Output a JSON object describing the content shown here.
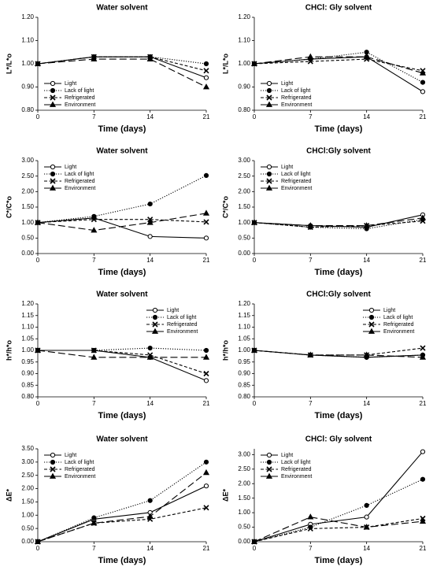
{
  "chart_data": [
    {
      "type": "line",
      "title": "Water solvent",
      "x_label": "Time (days)",
      "y_label": "L*/L*o",
      "legend": "lower left",
      "x": [
        0,
        7,
        14,
        21
      ],
      "xlim": [
        0,
        21
      ],
      "xticks": [
        0,
        7,
        14,
        21
      ],
      "ylim": [
        0.8,
        1.2
      ],
      "yticks": [
        {
          "value": 0.8,
          "label": "0.80"
        },
        {
          "value": 0.9,
          "label": "0.90"
        },
        {
          "value": 1.0,
          "label": "1.00"
        },
        {
          "value": 1.1,
          "label": "1.10"
        },
        {
          "value": 1.2,
          "label": "1.20"
        }
      ],
      "series": [
        {
          "name": "Light",
          "color": "#000000",
          "dash": "solid",
          "marker": "circle-open",
          "values": [
            1.0,
            1.03,
            1.03,
            0.94
          ]
        },
        {
          "name": "Lack of light",
          "color": "#000000",
          "dash": "dotted",
          "marker": "circle",
          "values": [
            1.0,
            1.03,
            1.03,
            1.0
          ]
        },
        {
          "name": "Refrigerated",
          "color": "#000000",
          "dash": "dashed",
          "marker": "x",
          "values": [
            1.0,
            1.03,
            1.03,
            0.97
          ]
        },
        {
          "name": "Environment",
          "color": "#000000",
          "dash": "long-dash",
          "marker": "triangle",
          "values": [
            1.0,
            1.02,
            1.02,
            0.9
          ]
        }
      ]
    },
    {
      "type": "line",
      "title": "CHCl: Gly solvent",
      "x_label": "Time (days)",
      "y_label": "L*/L*o",
      "legend": "lower left",
      "x": [
        0,
        7,
        14,
        21
      ],
      "xlim": [
        0,
        21
      ],
      "xticks": [
        0,
        7,
        14,
        21
      ],
      "ylim": [
        0.8,
        1.2
      ],
      "yticks": [
        {
          "value": 0.8,
          "label": "0.80"
        },
        {
          "value": 0.9,
          "label": "0.90"
        },
        {
          "value": 1.0,
          "label": "1.00"
        },
        {
          "value": 1.1,
          "label": "1.10"
        },
        {
          "value": 1.2,
          "label": "1.20"
        }
      ],
      "series": [
        {
          "name": "Light",
          "color": "#000000",
          "dash": "solid",
          "marker": "circle-open",
          "values": [
            1.0,
            1.02,
            1.03,
            0.88
          ]
        },
        {
          "name": "Lack of light",
          "color": "#000000",
          "dash": "dotted",
          "marker": "circle",
          "values": [
            1.0,
            1.02,
            1.05,
            0.92
          ]
        },
        {
          "name": "Refrigerated",
          "color": "#000000",
          "dash": "dashed",
          "marker": "x",
          "values": [
            1.0,
            1.01,
            1.02,
            0.97
          ]
        },
        {
          "name": "Environment",
          "color": "#000000",
          "dash": "long-dash",
          "marker": "triangle",
          "values": [
            1.0,
            1.03,
            1.03,
            0.96
          ]
        }
      ]
    },
    {
      "type": "line",
      "title": "Water solvent",
      "x_label": "Time (days)",
      "y_label": "C*/C*o",
      "legend": "upper left",
      "x": [
        0,
        7,
        14,
        21
      ],
      "xlim": [
        0,
        21
      ],
      "xticks": [
        0,
        7,
        14,
        21
      ],
      "ylim": [
        0,
        3
      ],
      "yticks": [
        {
          "value": 0,
          "label": "0.00"
        },
        {
          "value": 0.5,
          "label": "0.50"
        },
        {
          "value": 1,
          "label": "1.00"
        },
        {
          "value": 1.5,
          "label": "1.50"
        },
        {
          "value": 2,
          "label": "2.00"
        },
        {
          "value": 2.5,
          "label": "2.50"
        },
        {
          "value": 3,
          "label": "3.00"
        }
      ],
      "series": [
        {
          "name": "Light",
          "color": "#000000",
          "dash": "solid",
          "marker": "circle-open",
          "values": [
            1.0,
            1.15,
            0.55,
            0.5
          ]
        },
        {
          "name": "Lack of light",
          "color": "#000000",
          "dash": "dotted",
          "marker": "circle",
          "values": [
            1.0,
            1.2,
            1.6,
            2.52
          ]
        },
        {
          "name": "Refrigerated",
          "color": "#000000",
          "dash": "dashed",
          "marker": "x",
          "values": [
            1.0,
            1.1,
            1.1,
            1.02
          ]
        },
        {
          "name": "Environment",
          "color": "#000000",
          "dash": "long-dash",
          "marker": "triangle",
          "values": [
            1.0,
            0.75,
            1.0,
            1.3
          ]
        }
      ]
    },
    {
      "type": "line",
      "title": "CHCl:Gly solvent",
      "x_label": "Time (days)",
      "y_label": "C*/C*o",
      "legend": "upper left",
      "x": [
        0,
        7,
        14,
        21
      ],
      "xlim": [
        0,
        21
      ],
      "xticks": [
        0,
        7,
        14,
        21
      ],
      "ylim": [
        0,
        3
      ],
      "yticks": [
        {
          "value": 0,
          "label": "0.00"
        },
        {
          "value": 0.5,
          "label": "0.50"
        },
        {
          "value": 1,
          "label": "1.00"
        },
        {
          "value": 1.5,
          "label": "1.50"
        },
        {
          "value": 2,
          "label": "2.00"
        },
        {
          "value": 2.5,
          "label": "2.50"
        },
        {
          "value": 3,
          "label": "3.00"
        }
      ],
      "series": [
        {
          "name": "Light",
          "color": "#000000",
          "dash": "solid",
          "marker": "circle-open",
          "values": [
            1.0,
            0.9,
            0.85,
            1.25
          ]
        },
        {
          "name": "Lack of light",
          "color": "#000000",
          "dash": "dotted",
          "marker": "circle",
          "values": [
            1.0,
            0.85,
            0.8,
            1.1
          ]
        },
        {
          "name": "Refrigerated",
          "color": "#000000",
          "dash": "dashed",
          "marker": "x",
          "values": [
            1.0,
            0.85,
            0.9,
            1.05
          ]
        },
        {
          "name": "Environment",
          "color": "#000000",
          "dash": "long-dash",
          "marker": "triangle",
          "values": [
            1.0,
            0.9,
            0.9,
            1.15
          ]
        }
      ]
    },
    {
      "type": "line",
      "title": "Water solvent",
      "x_label": "Time (days)",
      "y_label": "h*/h*o",
      "legend": "upper right",
      "x": [
        0,
        7,
        14,
        21
      ],
      "xlim": [
        0,
        21
      ],
      "xticks": [
        0,
        7,
        14,
        21
      ],
      "ylim": [
        0.8,
        1.2
      ],
      "yticks": [
        {
          "value": 0.8,
          "label": "0.80"
        },
        {
          "value": 0.85,
          "label": "0.85"
        },
        {
          "value": 0.9,
          "label": "0.90"
        },
        {
          "value": 0.95,
          "label": "0.95"
        },
        {
          "value": 1.0,
          "label": "1.00"
        },
        {
          "value": 1.05,
          "label": "1.05"
        },
        {
          "value": 1.1,
          "label": "1.10"
        },
        {
          "value": 1.15,
          "label": "1.15"
        },
        {
          "value": 1.2,
          "label": "1.20"
        }
      ],
      "series": [
        {
          "name": "Light",
          "color": "#000000",
          "dash": "solid",
          "marker": "circle-open",
          "values": [
            1.0,
            1.0,
            0.97,
            0.87
          ]
        },
        {
          "name": "Lack of light",
          "color": "#000000",
          "dash": "dotted",
          "marker": "circle",
          "values": [
            1.0,
            1.0,
            1.01,
            1.0
          ]
        },
        {
          "name": "Refrigerated",
          "color": "#000000",
          "dash": "dashed",
          "marker": "x",
          "values": [
            1.0,
            1.0,
            0.98,
            0.9
          ]
        },
        {
          "name": "Environment",
          "color": "#000000",
          "dash": "long-dash",
          "marker": "triangle",
          "values": [
            1.0,
            0.97,
            0.97,
            0.97
          ]
        }
      ]
    },
    {
      "type": "line",
      "title": "CHCl:Gly solvent",
      "x_label": "Time (days)",
      "y_label": "h*/h*o",
      "legend": "upper right",
      "x": [
        0,
        7,
        14,
        21
      ],
      "xlim": [
        0,
        21
      ],
      "xticks": [
        0,
        7,
        14,
        21
      ],
      "ylim": [
        0.8,
        1.2
      ],
      "yticks": [
        {
          "value": 0.8,
          "label": "0.80"
        },
        {
          "value": 0.85,
          "label": "0.85"
        },
        {
          "value": 0.9,
          "label": "0.90"
        },
        {
          "value": 0.95,
          "label": "0.95"
        },
        {
          "value": 1.0,
          "label": "1.00"
        },
        {
          "value": 1.05,
          "label": "1.05"
        },
        {
          "value": 1.1,
          "label": "1.10"
        },
        {
          "value": 1.15,
          "label": "1.15"
        },
        {
          "value": 1.2,
          "label": "1.20"
        }
      ],
      "series": [
        {
          "name": "Light",
          "color": "#000000",
          "dash": "solid",
          "marker": "circle-open",
          "values": [
            1.0,
            0.98,
            0.97,
            0.98
          ]
        },
        {
          "name": "Lack of light",
          "color": "#000000",
          "dash": "dotted",
          "marker": "circle",
          "values": [
            1.0,
            0.98,
            0.97,
            0.98
          ]
        },
        {
          "name": "Refrigerated",
          "color": "#000000",
          "dash": "dashed",
          "marker": "x",
          "values": [
            1.0,
            0.98,
            0.98,
            1.01
          ]
        },
        {
          "name": "Environment",
          "color": "#000000",
          "dash": "long-dash",
          "marker": "triangle",
          "values": [
            1.0,
            0.98,
            0.98,
            0.97
          ]
        }
      ]
    },
    {
      "type": "line",
      "title": "Water solvent",
      "x_label": "Time (days)",
      "y_label": "ΔE*",
      "legend": "upper left",
      "x": [
        0,
        7,
        14,
        21
      ],
      "xlim": [
        0,
        21
      ],
      "xticks": [
        0,
        7,
        14,
        21
      ],
      "ylim": [
        0,
        3.5
      ],
      "yticks": [
        {
          "value": 0,
          "label": "0.00"
        },
        {
          "value": 0.5,
          "label": "0.50"
        },
        {
          "value": 1,
          "label": "1.00"
        },
        {
          "value": 1.5,
          "label": "1.50"
        },
        {
          "value": 2,
          "label": "2.00"
        },
        {
          "value": 2.5,
          "label": "2.50"
        },
        {
          "value": 3,
          "label": "3.00"
        },
        {
          "value": 3.5,
          "label": "3.50"
        }
      ],
      "series": [
        {
          "name": "Light",
          "color": "#000000",
          "dash": "solid",
          "marker": "circle-open",
          "values": [
            0,
            0.85,
            1.1,
            2.1
          ]
        },
        {
          "name": "Lack of light",
          "color": "#000000",
          "dash": "dotted",
          "marker": "circle",
          "values": [
            0,
            0.9,
            1.55,
            3.0
          ]
        },
        {
          "name": "Refrigerated",
          "color": "#000000",
          "dash": "dashed",
          "marker": "x",
          "values": [
            0,
            0.7,
            0.85,
            1.28
          ]
        },
        {
          "name": "Environment",
          "color": "#000000",
          "dash": "long-dash",
          "marker": "triangle",
          "values": [
            0,
            0.7,
            0.95,
            2.6
          ]
        }
      ]
    },
    {
      "type": "line",
      "title": "CHCl: Gly solvent",
      "x_label": "Time (days)",
      "y_label": "ΔE*",
      "legend": "upper left",
      "x": [
        0,
        7,
        14,
        21
      ],
      "xlim": [
        0,
        21
      ],
      "xticks": [
        0,
        7,
        14,
        21
      ],
      "ylim": [
        0,
        3.2
      ],
      "yticks": [
        {
          "value": 0,
          "label": "0.00"
        },
        {
          "value": 0.5,
          "label": "0.50"
        },
        {
          "value": 1,
          "label": "1.00"
        },
        {
          "value": 1.5,
          "label": "1.50"
        },
        {
          "value": 2,
          "label": "2.00"
        },
        {
          "value": 2.5,
          "label": "2.50"
        },
        {
          "value": 3,
          "label": "3.00"
        }
      ],
      "series": [
        {
          "name": "Light",
          "color": "#000000",
          "dash": "solid",
          "marker": "circle-open",
          "values": [
            0,
            0.6,
            0.85,
            3.1
          ]
        },
        {
          "name": "Lack of light",
          "color": "#000000",
          "dash": "dotted",
          "marker": "circle",
          "values": [
            0,
            0.5,
            1.25,
            2.15
          ]
        },
        {
          "name": "Refrigerated",
          "color": "#000000",
          "dash": "dashed",
          "marker": "x",
          "values": [
            0,
            0.45,
            0.5,
            0.8
          ]
        },
        {
          "name": "Environment",
          "color": "#000000",
          "dash": "long-dash",
          "marker": "triangle",
          "values": [
            0,
            0.85,
            0.5,
            0.7
          ]
        }
      ]
    }
  ]
}
